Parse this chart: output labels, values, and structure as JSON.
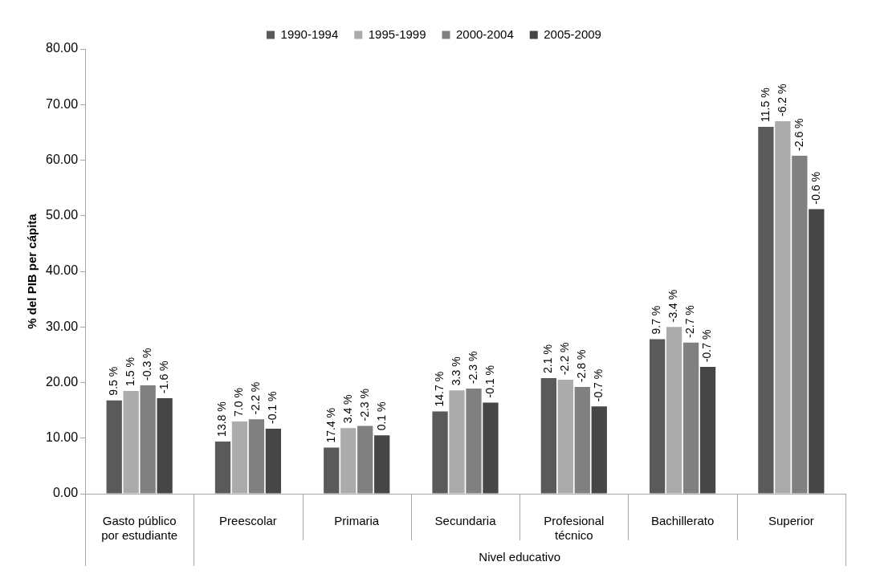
{
  "chart_data": {
    "type": "bar",
    "categories": [
      "Gasto público por estudiante",
      "Preescolar",
      "Primaria",
      "Secundaria",
      "Profesional técnico",
      "Bachillerato",
      "Superior"
    ],
    "ylabel": "% del PIB per cápita",
    "annotations": [
      "Nivel educativo",
      {
        "text": "9.5 %",
        "x": "Gasto público por estudiante",
        "y": 16.8
      },
      {
        "text": "1.5 %",
        "x": "Gasto público por estudiante",
        "y": 18.5
      },
      {
        "text": "-0.3 %",
        "x": "Gasto público por estudiante",
        "y": 19.5
      },
      {
        "text": "-1.6 %",
        "x": "Gasto público por estudiante",
        "y": 17.2
      },
      {
        "text": "13.8 %",
        "x": "Preescolar",
        "y": 9.4
      },
      {
        "text": "7.0 %",
        "x": "Preescolar",
        "y": 13.0
      },
      {
        "text": "-2.2 %",
        "x": "Preescolar",
        "y": 13.4
      },
      {
        "text": "-0.1 %",
        "x": "Preescolar",
        "y": 11.7
      },
      {
        "text": "17.4 %",
        "x": "Primaria",
        "y": 8.3
      },
      {
        "text": "3.4 %",
        "x": "Primaria",
        "y": 11.8
      },
      {
        "text": "-2.3 %",
        "x": "Primaria",
        "y": 12.2
      },
      {
        "text": "0.1 %",
        "x": "Primaria",
        "y": 10.5
      },
      {
        "text": "14.7 %",
        "x": "Secundaria",
        "y": 14.8
      },
      {
        "text": "3.3 %",
        "x": "Secundaria",
        "y": 18.6
      },
      {
        "text": "-2.3 %",
        "x": "Secundaria",
        "y": 18.9
      },
      {
        "text": "-0.1 %",
        "x": "Secundaria",
        "y": 16.4
      },
      {
        "text": "2.1 %",
        "x": "Profesional técnico",
        "y": 20.8
      },
      {
        "text": "-2.2 %",
        "x": "Profesional técnico",
        "y": 20.5
      },
      {
        "text": "-2.8 %",
        "x": "Profesional técnico",
        "y": 19.2
      },
      {
        "text": "-0.7 %",
        "x": "Profesional técnico",
        "y": 15.7
      },
      {
        "text": "9.7 %",
        "x": "Bachillerato",
        "y": 27.8
      },
      {
        "text": "-3.4 %",
        "x": "Bachillerato",
        "y": 30.0
      },
      {
        "text": "-2.7 %",
        "x": "Bachillerato",
        "y": 27.2
      },
      {
        "text": "-0.7 %",
        "x": "Bachillerato",
        "y": 22.8
      },
      {
        "text": "11.5 %",
        "x": "Superior",
        "y": 66.0
      },
      {
        "text": "-6.2 %",
        "x": "Superior",
        "y": 67.0
      },
      {
        "text": "-2.6 %",
        "x": "Superior",
        "y": 60.8
      },
      {
        "text": "-0.6 %",
        "x": "Superior",
        "y": 51.2
      }
    ],
    "series": [
      {
        "name": "1990-1994",
        "color": "#5a5a5a",
        "values": [
          16.8,
          9.4,
          8.3,
          14.8,
          20.8,
          27.8,
          66.0
        ]
      },
      {
        "name": "1995-1999",
        "color": "#ababab",
        "values": [
          18.5,
          13.0,
          11.8,
          18.6,
          20.5,
          30.0,
          67.0
        ]
      },
      {
        "name": "2000-2004",
        "color": "#808080",
        "values": [
          19.5,
          13.4,
          12.2,
          18.9,
          19.2,
          27.2,
          60.8
        ]
      },
      {
        "name": "2005-2009",
        "color": "#464646",
        "values": [
          17.2,
          11.7,
          10.5,
          16.4,
          15.7,
          22.8,
          51.2
        ]
      }
    ],
    "ylim": [
      0,
      80
    ],
    "yticks": [
      {
        "value": 0,
        "label": "0.00"
      },
      {
        "value": 10,
        "label": "10.00"
      },
      {
        "value": 20,
        "label": "20.00"
      },
      {
        "value": 30,
        "label": "30.00"
      },
      {
        "value": 40,
        "label": "40.00"
      },
      {
        "value": 50,
        "label": "50.00"
      },
      {
        "value": 60,
        "label": "60.00"
      },
      {
        "value": 70,
        "label": "70.00"
      },
      {
        "value": 80,
        "label": "80.00"
      }
    ],
    "grid": false,
    "legend": "top"
  }
}
